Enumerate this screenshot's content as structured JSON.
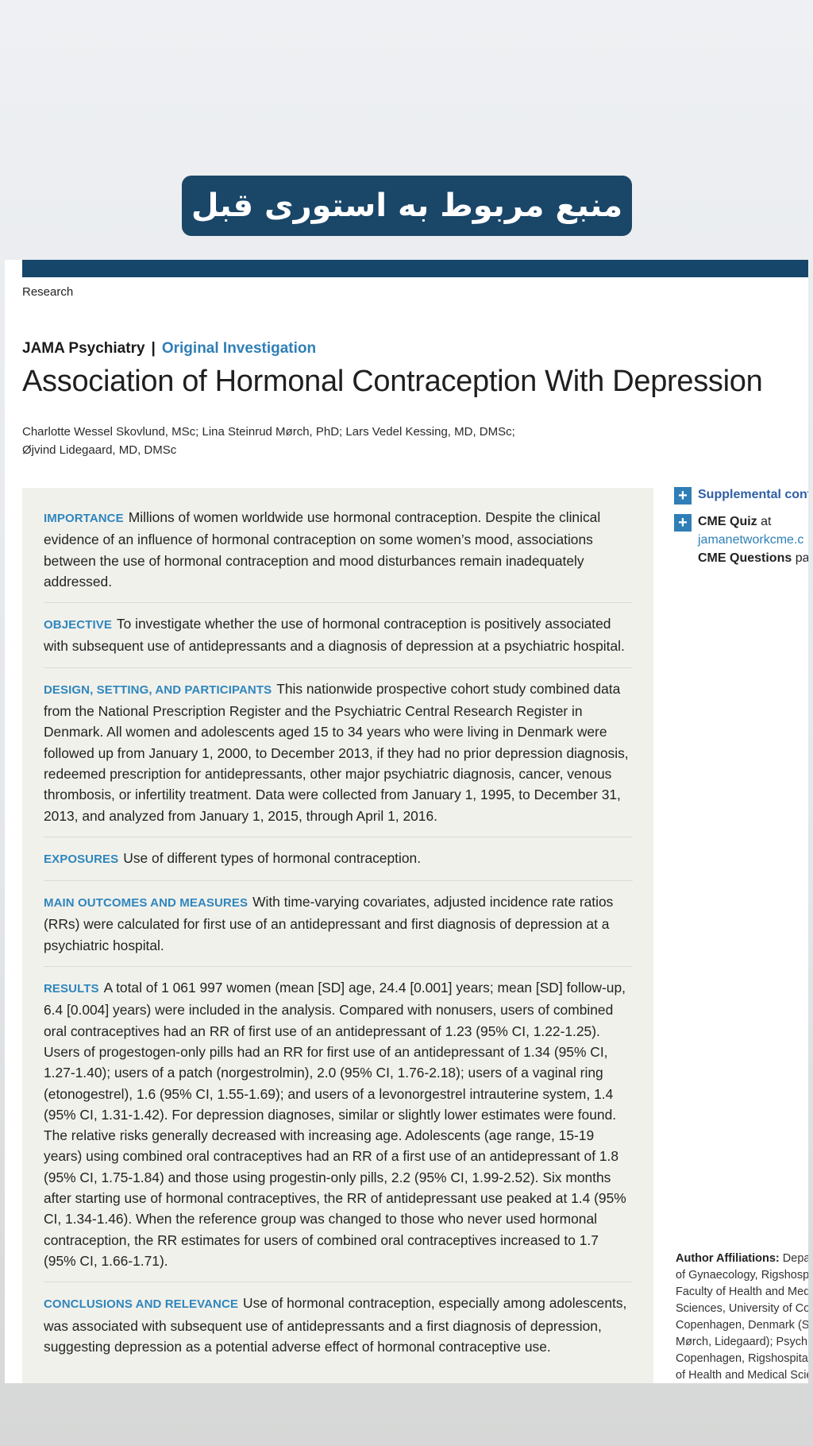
{
  "banner": {
    "text": "منبع مربوط به استوری قبل"
  },
  "header": {
    "section": "Research",
    "journal": "JAMA Psychiatry",
    "separator": "|",
    "article_type": "Original Investigation",
    "title": "Association of Hormonal Contraception With Depression",
    "authors_line1": "Charlotte Wessel Skovlund, MSc; Lina Steinrud Mørch, PhD; Lars Vedel Kessing, MD, DMSc;",
    "authors_line2": "Øjvind Lidegaard, MD, DMSc"
  },
  "abstract": [
    {
      "heading": "IMPORTANCE",
      "text": "Millions of women worldwide use hormonal contraception. Despite the clinical evidence of an influence of hormonal contraception on some women’s mood, associations between the use of hormonal contraception and mood disturbances remain inadequately addressed."
    },
    {
      "heading": "OBJECTIVE",
      "text": "To investigate whether the use of hormonal contraception is positively associated with subsequent use of antidepressants and a diagnosis of depression at a psychiatric hospital."
    },
    {
      "heading": "DESIGN, SETTING, AND PARTICIPANTS",
      "text": "This nationwide prospective cohort study combined data from the National Prescription Register and the Psychiatric Central Research Register in Denmark. All women and adolescents aged 15 to 34 years who were living in Denmark were followed up from January 1, 2000, to December 2013, if they had no prior depression diagnosis, redeemed prescription for antidepressants, other major psychiatric diagnosis, cancer, venous thrombosis, or infertility treatment. Data were collected from January 1, 1995, to December 31, 2013, and analyzed from January 1, 2015, through April 1, 2016."
    },
    {
      "heading": "EXPOSURES",
      "text": "Use of different types of hormonal contraception."
    },
    {
      "heading": "MAIN OUTCOMES AND MEASURES",
      "text": "With time-varying covariates, adjusted incidence rate ratios (RRs) were calculated for first use of an antidepressant and first diagnosis of depression at a psychiatric hospital."
    },
    {
      "heading": "RESULTS",
      "text": "A total of 1 061 997 women (mean [SD] age, 24.4 [0.001] years; mean [SD] follow-up, 6.4 [0.004] years) were included in the analysis. Compared with nonusers, users of combined oral contraceptives had an RR of first use of an antidepressant of 1.23 (95% CI, 1.22-1.25). Users of progestogen-only pills had an RR for first use of an antidepressant of 1.34 (95% CI, 1.27-1.40); users of a patch (norgestrolmin), 2.0 (95% CI, 1.76-2.18); users of a vaginal ring (etonogestrel), 1.6 (95% CI, 1.55-1.69); and users of a levonorgestrel intrauterine system, 1.4 (95% CI, 1.31-1.42). For depression diagnoses, similar or slightly lower estimates were found. The relative risks generally decreased with increasing age. Adolescents (age range, 15-19 years) using combined oral contraceptives had an RR of a first use of an antidepressant of 1.8 (95% CI, 1.75-1.84) and those using progestin-only pills, 2.2 (95% CI, 1.99-2.52). Six months after starting use of hormonal contraceptives, the RR of antidepressant use peaked at 1.4 (95% CI, 1.34-1.46). When the reference group was changed to those who never used hormonal contraception, the RR estimates for users of combined oral contraceptives increased to 1.7 (95% CI, 1.66-1.71)."
    },
    {
      "heading": "CONCLUSIONS AND RELEVANCE",
      "text": "Use of hormonal contraception, especially among adolescents, was associated with subsequent use of antidepressants and a first diagnosis of depression, suggesting depression as a potential adverse effect of hormonal contraceptive use."
    }
  ],
  "sidebar": {
    "supplemental": "Supplemental cont",
    "cme_quiz": "CME Quiz",
    "cme_at": "at",
    "cme_link": "jamanetworkcme.c",
    "cme_questions": "CME Questions",
    "cme_page": "pag"
  },
  "affiliations": {
    "label": "Author Affiliations:",
    "lines": [
      "Depa",
      "of Gynaecology, Rigshosp",
      "Faculty of Health and Med",
      "Sciences, University of Co",
      "Copenhagen, Denmark (S",
      "Mørch, Lidegaard); Psych",
      "Copenhagen, Rigshospita",
      "of Health and Medical Scie"
    ]
  }
}
